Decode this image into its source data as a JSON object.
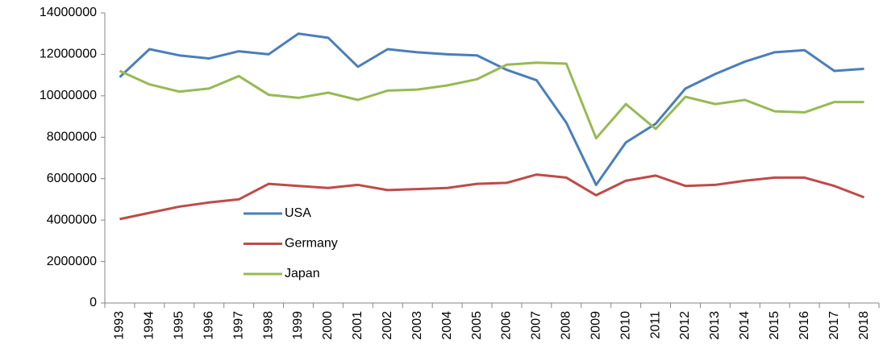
{
  "chart_data": {
    "type": "line",
    "categories": [
      "1993",
      "1994",
      "1995",
      "1996",
      "1997",
      "1998",
      "1999",
      "2000",
      "2001",
      "2002",
      "2003",
      "2004",
      "2005",
      "2006",
      "2007",
      "2008",
      "2009",
      "2010",
      "2011",
      "2012",
      "2013",
      "2014",
      "2015",
      "2016",
      "2017",
      "2018"
    ],
    "series": [
      {
        "name": "USA",
        "color": "#4a7ebb",
        "values": [
          10900000,
          12250000,
          11950000,
          11800000,
          12150000,
          12000000,
          13000000,
          12800000,
          11400000,
          12250000,
          12100000,
          12000000,
          11950000,
          11250000,
          10750000,
          8700000,
          5700000,
          7750000,
          8650000,
          10350000,
          11050000,
          11650000,
          12100000,
          12200000,
          11200000,
          11300000
        ]
      },
      {
        "name": "Germany",
        "color": "#be4b48",
        "values": [
          4050000,
          4350000,
          4650000,
          4850000,
          5000000,
          5750000,
          5650000,
          5550000,
          5700000,
          5450000,
          5500000,
          5550000,
          5750000,
          5800000,
          6200000,
          6050000,
          5200000,
          5900000,
          6150000,
          5650000,
          5700000,
          5900000,
          6050000,
          6050000,
          5650000,
          5100000
        ]
      },
      {
        "name": "Japan",
        "color": "#98b954",
        "values": [
          11200000,
          10550000,
          10200000,
          10350000,
          10950000,
          10050000,
          9900000,
          10150000,
          9800000,
          10250000,
          10300000,
          10500000,
          10800000,
          11500000,
          11600000,
          11550000,
          7950000,
          9600000,
          8400000,
          9950000,
          9600000,
          9800000,
          9250000,
          9200000,
          9700000,
          9700000
        ]
      }
    ],
    "ylim": [
      0,
      14000000
    ],
    "yticks": [
      0,
      2000000,
      4000000,
      6000000,
      8000000,
      10000000,
      12000000,
      14000000
    ],
    "grid": false,
    "legend": "inside"
  }
}
